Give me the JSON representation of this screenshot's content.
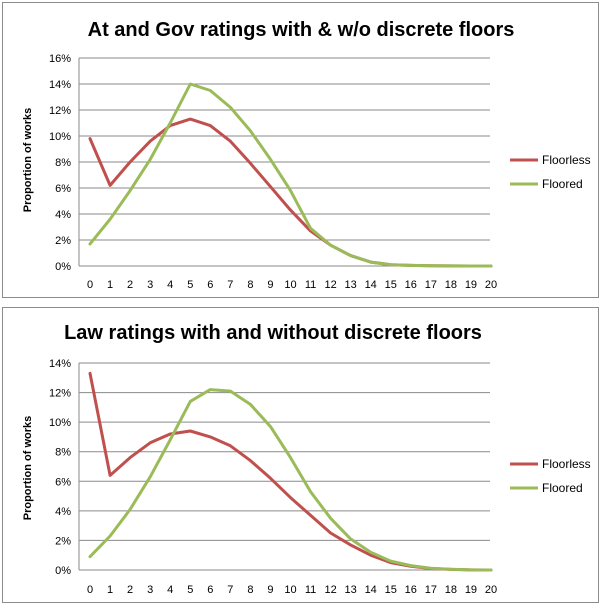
{
  "chart_data": [
    {
      "type": "line",
      "title": "At and Gov ratings with & w/o discrete floors",
      "xlabel": "",
      "ylabel": "Proportion of works",
      "x": [
        0,
        1,
        2,
        3,
        4,
        5,
        6,
        7,
        8,
        9,
        10,
        11,
        12,
        13,
        14,
        15,
        16,
        17,
        18,
        19,
        20
      ],
      "ylim": [
        0,
        16
      ],
      "yticks": [
        0,
        2,
        4,
        6,
        8,
        10,
        12,
        14,
        16
      ],
      "ytick_labels": [
        "0%",
        "2%",
        "4%",
        "6%",
        "8%",
        "10%",
        "12%",
        "14%",
        "16%"
      ],
      "legend_position": "right",
      "series": [
        {
          "name": "Floorless",
          "color": "#c0504d",
          "values": [
            9.8,
            6.2,
            8.0,
            9.6,
            10.8,
            11.3,
            10.8,
            9.6,
            7.9,
            6.1,
            4.3,
            2.7,
            1.6,
            0.8,
            0.3,
            0.1,
            0.05,
            0.02,
            0.01,
            0.0,
            0.0
          ]
        },
        {
          "name": "Floored",
          "color": "#9bbb59",
          "values": [
            1.7,
            3.6,
            5.8,
            8.2,
            11.0,
            14.0,
            13.5,
            12.2,
            10.4,
            8.2,
            5.8,
            2.9,
            1.6,
            0.8,
            0.3,
            0.1,
            0.05,
            0.02,
            0.01,
            0.0,
            0.0
          ]
        }
      ]
    },
    {
      "type": "line",
      "title": "Law ratings with and without discrete floors",
      "xlabel": "",
      "ylabel": "Proportion of works",
      "x": [
        0,
        1,
        2,
        3,
        4,
        5,
        6,
        7,
        8,
        9,
        10,
        11,
        12,
        13,
        14,
        15,
        16,
        17,
        18,
        19,
        20
      ],
      "ylim": [
        0,
        14
      ],
      "yticks": [
        0,
        2,
        4,
        6,
        8,
        10,
        12,
        14
      ],
      "ytick_labels": [
        "0%",
        "2%",
        "4%",
        "6%",
        "8%",
        "10%",
        "12%",
        "14%"
      ],
      "legend_position": "right",
      "series": [
        {
          "name": "Floorless",
          "color": "#c0504d",
          "values": [
            13.3,
            6.4,
            7.6,
            8.6,
            9.2,
            9.4,
            9.0,
            8.4,
            7.4,
            6.2,
            4.9,
            3.7,
            2.5,
            1.7,
            1.0,
            0.5,
            0.25,
            0.1,
            0.04,
            0.01,
            0.0
          ]
        },
        {
          "name": "Floored",
          "color": "#9bbb59",
          "values": [
            0.9,
            2.3,
            4.1,
            6.3,
            8.8,
            11.4,
            12.2,
            12.1,
            11.2,
            9.7,
            7.6,
            5.3,
            3.5,
            2.1,
            1.2,
            0.6,
            0.3,
            0.12,
            0.05,
            0.01,
            0.0
          ]
        }
      ]
    }
  ]
}
